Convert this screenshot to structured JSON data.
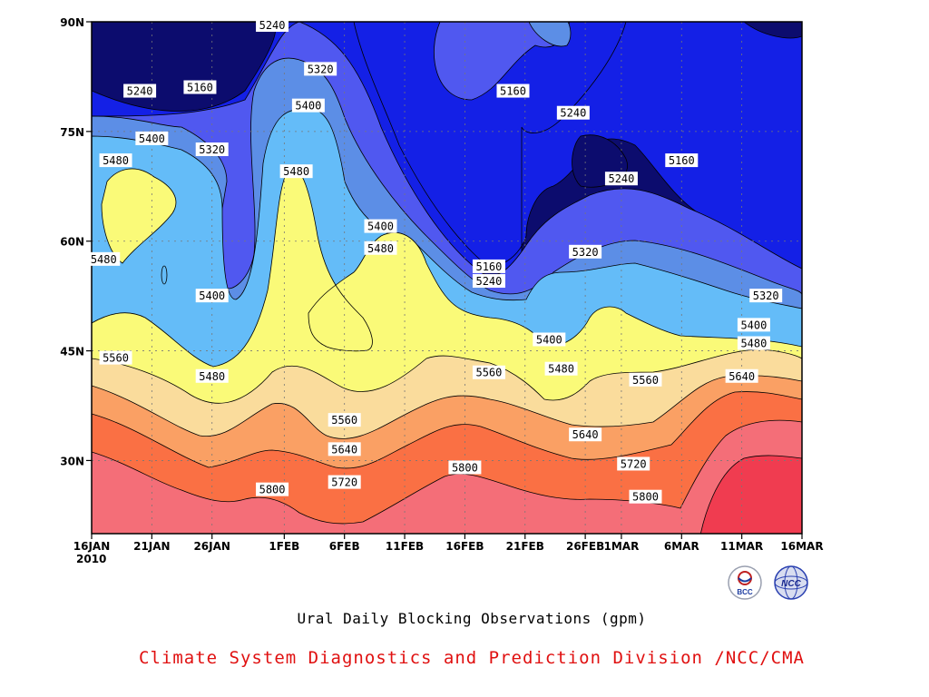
{
  "chart_data": {
    "type": "heatmap",
    "subtype": "filled-contour",
    "title": "Ural Daily Blocking Observations (gpm)",
    "x_axis": {
      "type": "date",
      "range": [
        "2010-01-16",
        "2010-03-16"
      ],
      "tick_labels": [
        "16JAN",
        "21JAN",
        "26JAN",
        "1FEB",
        "6FEB",
        "11FEB",
        "16FEB",
        "21FEB",
        "26FEB",
        "1MAR",
        "6MAR",
        "11MAR",
        "16MAR"
      ],
      "tick_dates": [
        "2010-01-16",
        "2010-01-21",
        "2010-01-26",
        "2010-02-01",
        "2010-02-06",
        "2010-02-11",
        "2010-02-16",
        "2010-02-21",
        "2010-02-26",
        "2010-03-01",
        "2010-03-06",
        "2010-03-11",
        "2010-03-16"
      ],
      "year_label": "2010"
    },
    "y_axis": {
      "label": "",
      "range": [
        20,
        90
      ],
      "tick_values": [
        30,
        45,
        60,
        75,
        90
      ],
      "tick_labels": [
        "30N",
        "45N",
        "60N",
        "75N",
        "90N"
      ]
    },
    "grid": "dotted",
    "levels": [
      5160,
      5240,
      5320,
      5400,
      5480,
      5560,
      5640,
      5720,
      5800
    ],
    "fill_colors": [
      "#0c0c6e",
      "#1420e6",
      "#5058f0",
      "#5c8ee6",
      "#64bcf8",
      "#fafa78",
      "#fadc9c",
      "#faa064",
      "#fa7044",
      "#f46e78",
      "#f03c50"
    ],
    "contour_labels": [
      {
        "text": "5240",
        "date": "2010-01-31",
        "lat": 89.5
      },
      {
        "text": "5320",
        "date": "2010-02-04",
        "lat": 83.5
      },
      {
        "text": "5240",
        "date": "2010-01-20",
        "lat": 80.5
      },
      {
        "text": "5160",
        "date": "2010-01-25",
        "lat": 81.0
      },
      {
        "text": "5400",
        "date": "2010-02-03",
        "lat": 78.5
      },
      {
        "text": "5400",
        "date": "2010-01-21",
        "lat": 74.0
      },
      {
        "text": "5320",
        "date": "2010-01-26",
        "lat": 72.5
      },
      {
        "text": "5480",
        "date": "2010-01-18",
        "lat": 71.0
      },
      {
        "text": "5480",
        "date": "2010-02-02",
        "lat": 69.5
      },
      {
        "text": "5400",
        "date": "2010-02-09",
        "lat": 62.0
      },
      {
        "text": "5480",
        "date": "2010-02-09",
        "lat": 59.0
      },
      {
        "text": "5480",
        "date": "2010-01-17",
        "lat": 57.5
      },
      {
        "text": "5400",
        "date": "2010-01-26",
        "lat": 52.5
      },
      {
        "text": "5160",
        "date": "2010-02-20",
        "lat": 80.5
      },
      {
        "text": "5240",
        "date": "2010-02-25",
        "lat": 77.5
      },
      {
        "text": "5160",
        "date": "2010-03-06",
        "lat": 71.0
      },
      {
        "text": "5240",
        "date": "2010-03-01",
        "lat": 68.5
      },
      {
        "text": "5320",
        "date": "2010-02-26",
        "lat": 58.5
      },
      {
        "text": "5160",
        "date": "2010-02-18",
        "lat": 56.5
      },
      {
        "text": "5240",
        "date": "2010-02-18",
        "lat": 54.5
      },
      {
        "text": "5320",
        "date": "2010-03-13",
        "lat": 52.5
      },
      {
        "text": "5400",
        "date": "2010-03-12",
        "lat": 48.5
      },
      {
        "text": "5400",
        "date": "2010-02-23",
        "lat": 46.5
      },
      {
        "text": "5480",
        "date": "2010-03-12",
        "lat": 46.0
      },
      {
        "text": "5480",
        "date": "2010-02-24",
        "lat": 42.5
      },
      {
        "text": "5560",
        "date": "2010-01-18",
        "lat": 44.0
      },
      {
        "text": "5480",
        "date": "2010-01-26",
        "lat": 41.5
      },
      {
        "text": "5560",
        "date": "2010-02-18",
        "lat": 42.0
      },
      {
        "text": "5560",
        "date": "2010-03-03",
        "lat": 41.0
      },
      {
        "text": "5640",
        "date": "2010-03-11",
        "lat": 41.5
      },
      {
        "text": "5560",
        "date": "2010-02-06",
        "lat": 35.5
      },
      {
        "text": "5640",
        "date": "2010-02-26",
        "lat": 33.5
      },
      {
        "text": "5640",
        "date": "2010-02-06",
        "lat": 31.5
      },
      {
        "text": "5800",
        "date": "2010-02-16",
        "lat": 29.0
      },
      {
        "text": "5720",
        "date": "2010-03-02",
        "lat": 29.5
      },
      {
        "text": "5720",
        "date": "2010-02-06",
        "lat": 27.0
      },
      {
        "text": "5800",
        "date": "2010-01-31",
        "lat": 26.0
      },
      {
        "text": "5800",
        "date": "2010-03-03",
        "lat": 25.0
      }
    ]
  },
  "footer": {
    "title": "Ural Daily Blocking Observations (gpm)",
    "credit": "Climate System Diagnostics and Prediction Division /NCC/CMA"
  },
  "logos": {
    "left_text": "BCC",
    "right_text": "NCC"
  }
}
